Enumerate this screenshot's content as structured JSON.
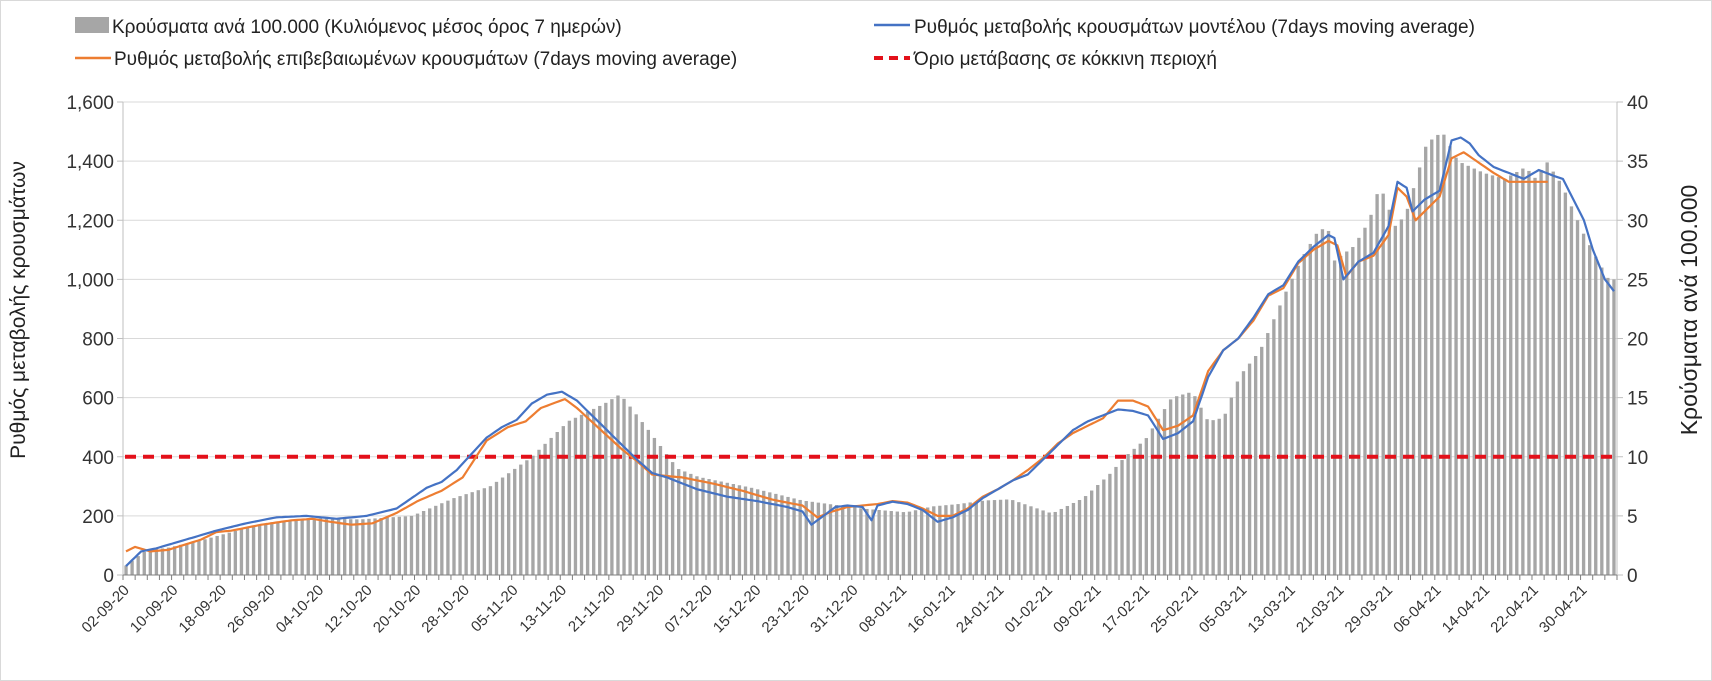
{
  "chart_data": {
    "type": "bar+line",
    "legend": {
      "bars": "Κρούσματα ανά 100.000 (Κυλιόμενος μέσος όρος 7 ημερών)",
      "model": "Ρυθμός μεταβολής κρουσμάτων μοντέλου (7days moving average)",
      "confirmed": "Ρυθμός μεταβολής επιβεβαιωμένων κρουσμάτων (7days moving average)",
      "threshold": "Όριο μετάβασης σε κόκκινη περιοχή"
    },
    "y_left": {
      "label": "Ρυθμός μεταβολής κρουσμάτων",
      "range": [
        0,
        1600
      ],
      "ticks": [
        "0",
        "200",
        "400",
        "600",
        "800",
        "1,000",
        "1,200",
        "1,400",
        "1,600"
      ]
    },
    "y_right": {
      "label": "Κρούσματα ανά 100.000",
      "range": [
        0,
        40
      ],
      "ticks": [
        "0",
        "5",
        "10",
        "15",
        "20",
        "25",
        "30",
        "35",
        "40"
      ]
    },
    "x_start": "2020-09-02",
    "x_days": 246,
    "x_tick_labels": [
      "02-09-20",
      "10-09-20",
      "18-09-20",
      "26-09-20",
      "04-10-20",
      "12-10-20",
      "20-10-20",
      "28-10-20",
      "05-11-20",
      "13-11-20",
      "21-11-20",
      "29-11-20",
      "07-12-20",
      "15-12-20",
      "23-12-20",
      "31-12-20",
      "08-01-21",
      "16-01-21",
      "24-01-21",
      "01-02-21",
      "09-02-21",
      "17-02-21",
      "25-02-21",
      "05-03-21",
      "13-03-21",
      "21-03-21",
      "29-03-21",
      "06-04-21",
      "14-04-21",
      "22-04-21",
      "30-04-21"
    ],
    "threshold_value": 400,
    "bars_keypoints": [
      [
        0,
        0.8
      ],
      [
        2,
        1.5
      ],
      [
        4,
        2.1
      ],
      [
        8,
        2.3
      ],
      [
        15,
        3
      ],
      [
        25,
        4.2
      ],
      [
        35,
        4.8
      ],
      [
        45,
        4.7
      ],
      [
        55,
        5
      ],
      [
        63,
        6.5
      ],
      [
        70,
        7.5
      ],
      [
        78,
        10
      ],
      [
        85,
        13
      ],
      [
        92,
        14.5
      ],
      [
        95,
        15.3
      ],
      [
        100,
        12.5
      ],
      [
        106,
        9
      ],
      [
        110,
        8.3
      ],
      [
        120,
        7.4
      ],
      [
        130,
        6.3
      ],
      [
        142,
        5.6
      ],
      [
        150,
        5.3
      ],
      [
        155,
        5.8
      ],
      [
        160,
        6
      ],
      [
        165,
        6.3
      ],
      [
        170,
        6.4
      ],
      [
        178,
        5.2
      ],
      [
        184,
        6.5
      ],
      [
        189,
        8.5
      ],
      [
        192,
        10
      ],
      [
        196,
        11.5
      ],
      [
        201,
        15
      ],
      [
        205,
        15.5
      ],
      [
        208,
        13
      ],
      [
        211,
        13.3
      ],
      [
        214,
        16.8
      ],
      [
        218,
        19
      ],
      [
        223,
        24
      ],
      [
        226,
        26.8
      ],
      [
        229,
        29
      ],
      [
        231,
        29.5
      ],
      [
        232,
        26.5
      ],
      [
        236,
        27.8
      ],
      [
        239,
        30
      ],
      [
        241,
        33
      ],
      [
        244,
        29.5
      ],
      [
        246,
        30.5
      ],
      [
        250,
        36.5
      ],
      [
        253,
        37.5
      ],
      [
        256,
        35
      ],
      [
        261,
        34
      ],
      [
        265,
        33.5
      ],
      [
        269,
        34.5
      ],
      [
        271,
        33.5
      ],
      [
        273,
        35
      ],
      [
        276,
        33
      ],
      [
        280,
        29
      ],
      [
        283,
        26.5
      ],
      [
        285,
        25
      ],
      [
        286,
        25
      ]
    ],
    "model_keypoints": [
      [
        0,
        30
      ],
      [
        5,
        80
      ],
      [
        10,
        90
      ],
      [
        20,
        120
      ],
      [
        30,
        150
      ],
      [
        40,
        175
      ],
      [
        50,
        195
      ],
      [
        60,
        200
      ],
      [
        70,
        190
      ],
      [
        75,
        195
      ],
      [
        80,
        200
      ],
      [
        90,
        225
      ],
      [
        95,
        260
      ],
      [
        100,
        295
      ],
      [
        105,
        315
      ],
      [
        110,
        355
      ],
      [
        115,
        410
      ],
      [
        120,
        465
      ],
      [
        125,
        500
      ],
      [
        130,
        525
      ],
      [
        135,
        580
      ],
      [
        140,
        610
      ],
      [
        145,
        620
      ],
      [
        150,
        590
      ],
      [
        155,
        540
      ],
      [
        160,
        490
      ],
      [
        165,
        440
      ],
      [
        170,
        390
      ],
      [
        175,
        345
      ],
      [
        180,
        330
      ],
      [
        190,
        290
      ],
      [
        200,
        265
      ],
      [
        210,
        250
      ],
      [
        220,
        230
      ],
      [
        225,
        215
      ],
      [
        228,
        170
      ],
      [
        232,
        200
      ],
      [
        236,
        230
      ],
      [
        240,
        235
      ],
      [
        245,
        230
      ],
      [
        248,
        185
      ],
      [
        250,
        235
      ],
      [
        255,
        248
      ],
      [
        260,
        240
      ],
      [
        265,
        220
      ],
      [
        270,
        180
      ],
      [
        275,
        195
      ],
      [
        280,
        220
      ],
      [
        285,
        260
      ],
      [
        290,
        290
      ],
      [
        295,
        320
      ],
      [
        300,
        340
      ],
      [
        305,
        390
      ],
      [
        310,
        440
      ],
      [
        315,
        490
      ],
      [
        320,
        520
      ],
      [
        325,
        540
      ],
      [
        330,
        560
      ],
      [
        335,
        555
      ],
      [
        340,
        540
      ],
      [
        345,
        460
      ],
      [
        350,
        480
      ],
      [
        355,
        520
      ],
      [
        360,
        670
      ],
      [
        365,
        760
      ],
      [
        370,
        800
      ],
      [
        375,
        870
      ],
      [
        380,
        950
      ],
      [
        385,
        980
      ],
      [
        390,
        1060
      ],
      [
        395,
        1110
      ],
      [
        400,
        1150
      ],
      [
        402,
        1140
      ],
      [
        405,
        1000
      ],
      [
        410,
        1060
      ],
      [
        415,
        1090
      ],
      [
        420,
        1180
      ],
      [
        423,
        1330
      ],
      [
        426,
        1310
      ],
      [
        428,
        1230
      ],
      [
        432,
        1270
      ],
      [
        437,
        1300
      ],
      [
        441,
        1470
      ],
      [
        444,
        1480
      ],
      [
        447,
        1460
      ],
      [
        450,
        1420
      ],
      [
        455,
        1380
      ],
      [
        460,
        1360
      ],
      [
        465,
        1340
      ],
      [
        470,
        1370
      ],
      [
        475,
        1350
      ],
      [
        478,
        1340
      ],
      [
        480,
        1300
      ],
      [
        485,
        1200
      ],
      [
        488,
        1100
      ],
      [
        492,
        1000
      ],
      [
        495,
        960
      ]
    ],
    "confirmed_keypoints": [
      [
        0,
        80
      ],
      [
        3,
        95
      ],
      [
        8,
        80
      ],
      [
        14,
        85
      ],
      [
        25,
        120
      ],
      [
        30,
        145
      ],
      [
        35,
        150
      ],
      [
        45,
        170
      ],
      [
        55,
        185
      ],
      [
        62,
        190
      ],
      [
        68,
        180
      ],
      [
        75,
        170
      ],
      [
        82,
        175
      ],
      [
        90,
        210
      ],
      [
        97,
        250
      ],
      [
        105,
        285
      ],
      [
        112,
        330
      ],
      [
        120,
        455
      ],
      [
        127,
        500
      ],
      [
        133,
        520
      ],
      [
        138,
        565
      ],
      [
        142,
        580
      ],
      [
        146,
        595
      ],
      [
        150,
        565
      ],
      [
        158,
        490
      ],
      [
        165,
        425
      ],
      [
        170,
        385
      ],
      [
        175,
        340
      ],
      [
        185,
        330
      ],
      [
        195,
        310
      ],
      [
        205,
        285
      ],
      [
        215,
        255
      ],
      [
        225,
        235
      ],
      [
        230,
        195
      ],
      [
        235,
        215
      ],
      [
        240,
        230
      ],
      [
        245,
        235
      ],
      [
        250,
        240
      ],
      [
        255,
        250
      ],
      [
        260,
        245
      ],
      [
        265,
        225
      ],
      [
        270,
        200
      ],
      [
        275,
        200
      ],
      [
        280,
        225
      ],
      [
        285,
        265
      ],
      [
        290,
        290
      ],
      [
        295,
        320
      ],
      [
        300,
        355
      ],
      [
        305,
        395
      ],
      [
        310,
        445
      ],
      [
        315,
        480
      ],
      [
        320,
        505
      ],
      [
        325,
        530
      ],
      [
        330,
        590
      ],
      [
        335,
        590
      ],
      [
        340,
        570
      ],
      [
        345,
        490
      ],
      [
        350,
        505
      ],
      [
        355,
        540
      ],
      [
        360,
        690
      ],
      [
        365,
        760
      ],
      [
        370,
        800
      ],
      [
        375,
        860
      ],
      [
        380,
        945
      ],
      [
        385,
        970
      ],
      [
        390,
        1055
      ],
      [
        395,
        1100
      ],
      [
        400,
        1130
      ],
      [
        403,
        1115
      ],
      [
        406,
        1010
      ],
      [
        410,
        1060
      ],
      [
        415,
        1080
      ],
      [
        420,
        1150
      ],
      [
        423,
        1310
      ],
      [
        426,
        1280
      ],
      [
        429,
        1200
      ],
      [
        432,
        1230
      ],
      [
        437,
        1280
      ],
      [
        441,
        1410
      ],
      [
        445,
        1430
      ],
      [
        450,
        1395
      ],
      [
        455,
        1360
      ],
      [
        460,
        1330
      ],
      [
        465,
        1330
      ],
      [
        470,
        1330
      ],
      [
        473,
        1330
      ]
    ]
  }
}
